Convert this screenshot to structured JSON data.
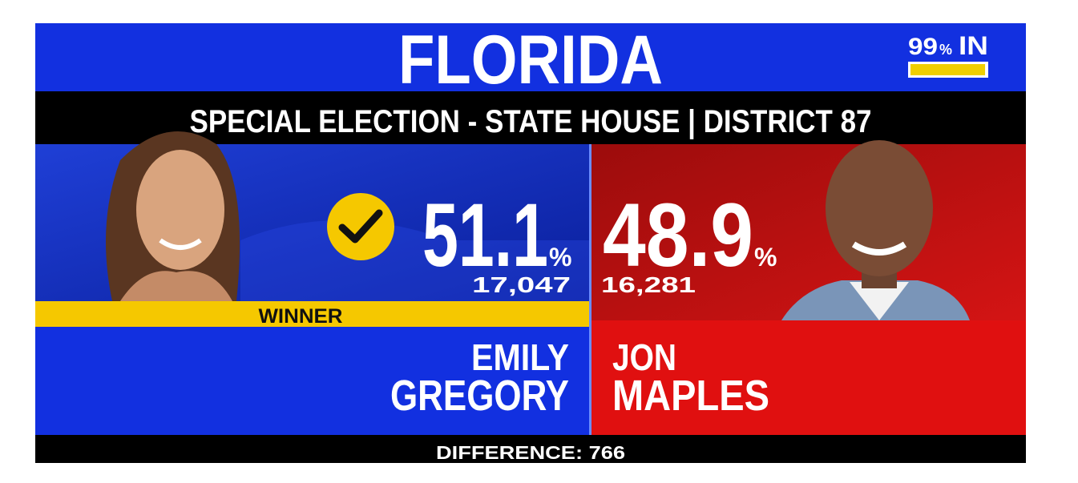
{
  "header": {
    "title": "FLORIDA",
    "reporting": {
      "value": 99,
      "unit": "%",
      "label": "IN"
    },
    "subtitle": "SPECIAL ELECTION - STATE HOUSE | DISTRICT 87"
  },
  "candidates": [
    {
      "first_name": "EMILY",
      "last_name": "GREGORY",
      "percent": "51.1",
      "percent_unit": "%",
      "votes": "17,047",
      "status": "WINNER"
    },
    {
      "first_name": "JON",
      "last_name": "MAPLES",
      "percent": "48.9",
      "percent_unit": "%",
      "votes": "16,281"
    }
  ],
  "footer": {
    "difference": "DIFFERENCE: 766"
  }
}
